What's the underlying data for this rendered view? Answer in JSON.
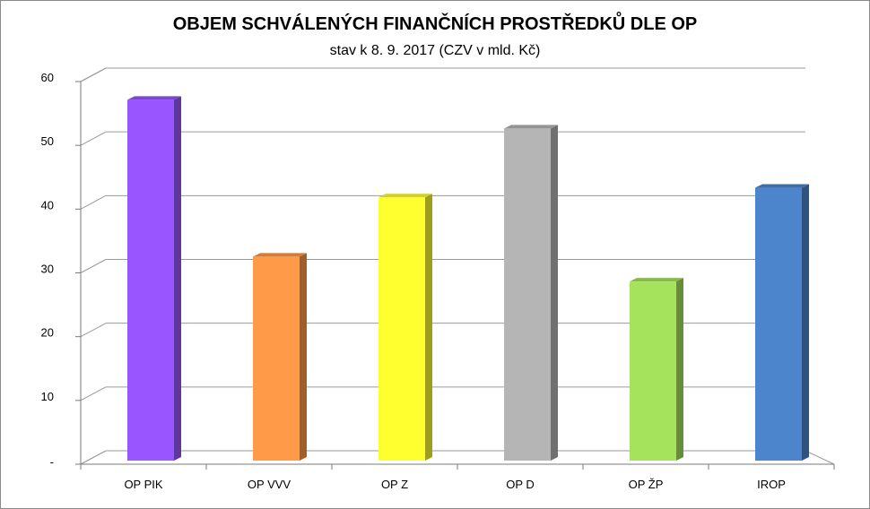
{
  "chart_data": {
    "type": "bar",
    "title": "OBJEM SCHVÁLENÝCH FINANČNÍCH PROSTŘEDKŮ DLE OP",
    "subtitle": "stav k 8. 9. 2017 (CZV v mld. Kč)",
    "categories": [
      "OP PIK",
      "OP VVV",
      "OP Z",
      "OP D",
      "OP ŽP",
      "IROP"
    ],
    "values": [
      57.0,
      32.4,
      41.7,
      52.5,
      28.5,
      43.2
    ],
    "colors": [
      "#9955ff",
      "#ff9a48",
      "#ffff30",
      "#b5b5b5",
      "#a6e35c",
      "#4d85cc"
    ],
    "ylim": [
      0,
      60
    ],
    "yticks": [
      {
        "value": 0,
        "label": "-"
      },
      {
        "value": 10,
        "label": "10"
      },
      {
        "value": 20,
        "label": "20"
      },
      {
        "value": 30,
        "label": "30"
      },
      {
        "value": 40,
        "label": "40"
      },
      {
        "value": 50,
        "label": "50"
      },
      {
        "value": 60,
        "label": "60"
      }
    ],
    "grid": true,
    "legend": "none"
  }
}
